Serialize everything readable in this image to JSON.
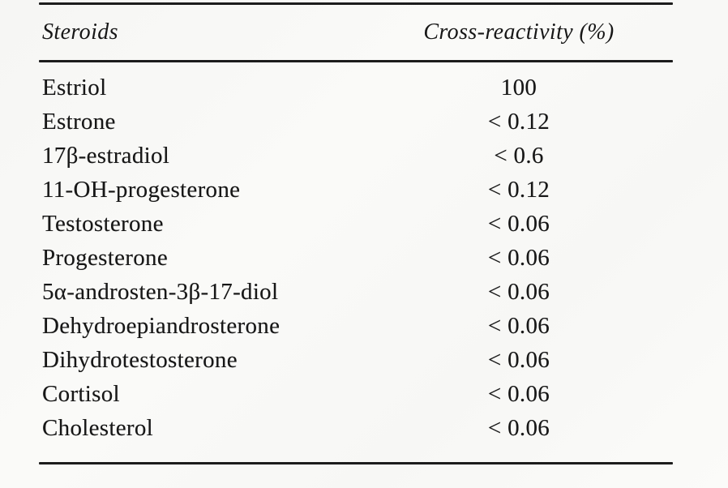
{
  "table": {
    "columns": {
      "steroids_label": "Steroids",
      "cross_reactivity_label": "Cross-reactivity (%)"
    },
    "rows": [
      {
        "steroid": "Estriol",
        "value": "100"
      },
      {
        "steroid": "Estrone",
        "value": "< 0.12"
      },
      {
        "steroid": "17β-estradiol",
        "value": "< 0.6"
      },
      {
        "steroid": "11-OH-progesterone",
        "value": "< 0.12"
      },
      {
        "steroid": "Testosterone",
        "value": "< 0.06"
      },
      {
        "steroid": "Progesterone",
        "value": "< 0.06"
      },
      {
        "steroid": "5α-androsten-3β-17-diol",
        "value": "< 0.06"
      },
      {
        "steroid": "Dehydroepiandrosterone",
        "value": "< 0.06"
      },
      {
        "steroid": "Dihydrotestosterone",
        "value": "< 0.06"
      },
      {
        "steroid": "Cortisol",
        "value": "< 0.06"
      },
      {
        "steroid": "Cholesterol",
        "value": "< 0.06"
      }
    ],
    "colors": {
      "text": "#171717",
      "rule": "#1c1c1c",
      "background": "#f8f8f6"
    }
  }
}
